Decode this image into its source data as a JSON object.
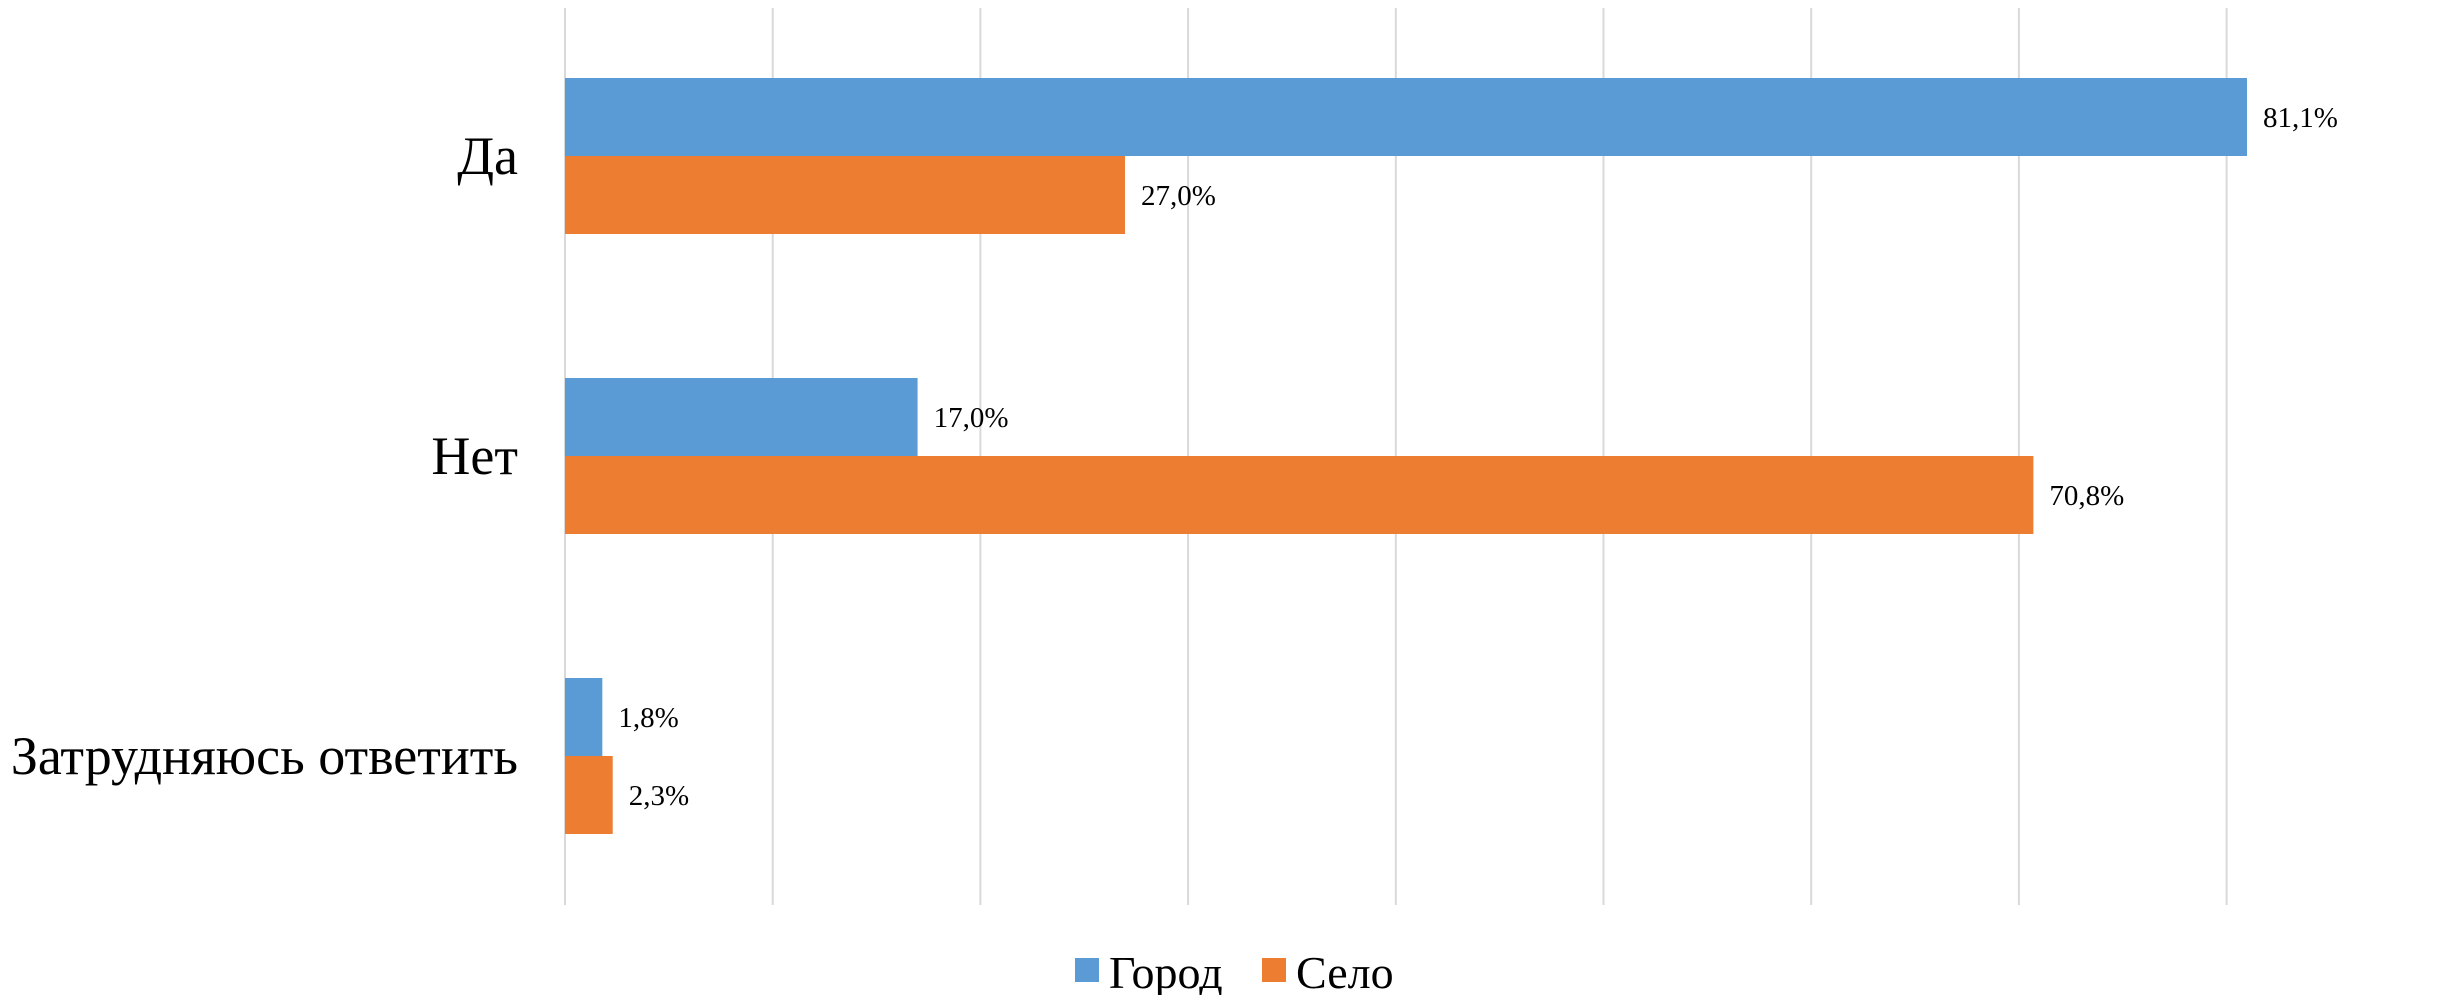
{
  "chart_data": {
    "type": "bar",
    "orientation": "horizontal",
    "categories": [
      "Да",
      "Нет",
      "Затрудняюсь ответить"
    ],
    "series": [
      {
        "name": "Город",
        "color": "#5b9bd5",
        "values": [
          81.1,
          17.0,
          1.8
        ],
        "labels": [
          "81,1%",
          "17,0%",
          "1,8%"
        ]
      },
      {
        "name": "Село",
        "color": "#ed7d31",
        "values": [
          27.0,
          70.8,
          2.3
        ],
        "labels": [
          "27,0%",
          "70,8%",
          "2,3%"
        ]
      }
    ],
    "xlim": [
      0,
      90
    ],
    "grid": true,
    "legend": "bottom"
  }
}
